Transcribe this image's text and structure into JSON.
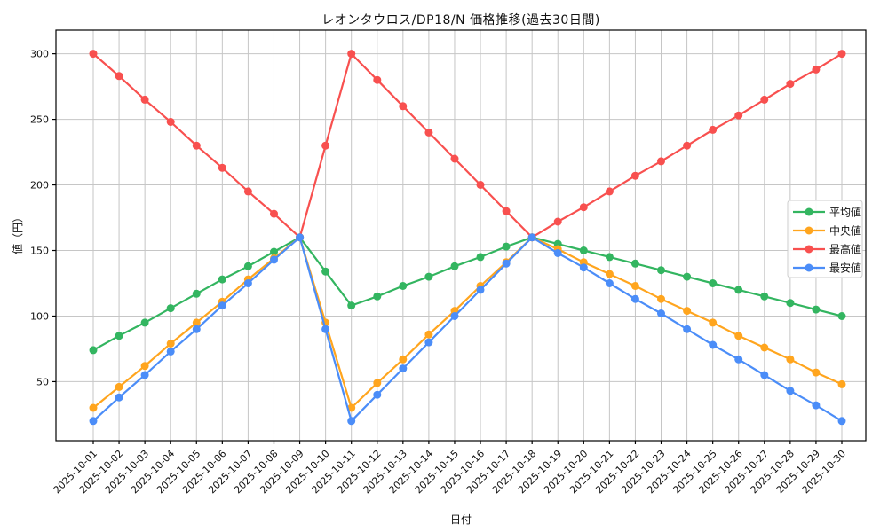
{
  "chart_data": {
    "type": "line",
    "title": "レオンタウロス/DP18/N 価格推移(過去30日間)",
    "xlabel": "日付",
    "ylabel": "値（円）",
    "x": [
      "2025-10-01",
      "2025-10-02",
      "2025-10-03",
      "2025-10-04",
      "2025-10-05",
      "2025-10-06",
      "2025-10-07",
      "2025-10-08",
      "2025-10-09",
      "2025-10-10",
      "2025-10-11",
      "2025-10-12",
      "2025-10-13",
      "2025-10-14",
      "2025-10-15",
      "2025-10-16",
      "2025-10-17",
      "2025-10-18",
      "2025-10-19",
      "2025-10-20",
      "2025-10-21",
      "2025-10-22",
      "2025-10-23",
      "2025-10-24",
      "2025-10-25",
      "2025-10-26",
      "2025-10-27",
      "2025-10-28",
      "2025-10-29",
      "2025-10-30"
    ],
    "series": [
      {
        "key": "average",
        "name": "平均値",
        "color": "#33b560",
        "values": [
          74,
          85,
          95,
          106,
          117,
          128,
          138,
          149,
          160,
          134,
          108,
          115,
          123,
          130,
          138,
          145,
          153,
          160,
          155,
          150,
          145,
          140,
          135,
          130,
          125,
          120,
          115,
          110,
          105,
          100
        ]
      },
      {
        "key": "median",
        "name": "中央値",
        "color": "#ffa51e",
        "values": [
          30,
          46,
          62,
          79,
          95,
          111,
          128,
          144,
          160,
          95,
          30,
          49,
          67,
          86,
          104,
          123,
          141,
          160,
          151,
          141,
          132,
          123,
          113,
          104,
          95,
          85,
          76,
          67,
          57,
          48
        ]
      },
      {
        "key": "highest",
        "name": "最高値",
        "color": "#f8504f",
        "values": [
          300,
          283,
          265,
          248,
          230,
          213,
          195,
          178,
          160,
          230,
          300,
          280,
          260,
          240,
          220,
          200,
          180,
          160,
          172,
          183,
          195,
          207,
          218,
          230,
          242,
          253,
          265,
          277,
          288,
          300
        ]
      },
      {
        "key": "lowest",
        "name": "最安値",
        "color": "#4b8df8",
        "values": [
          20,
          38,
          55,
          73,
          90,
          108,
          125,
          143,
          160,
          90,
          20,
          40,
          60,
          80,
          100,
          120,
          140,
          160,
          148,
          137,
          125,
          113,
          102,
          90,
          78,
          67,
          55,
          43,
          32,
          20
        ]
      }
    ],
    "yticks": [
      50,
      100,
      150,
      200,
      250,
      300
    ],
    "ylim": [
      5,
      318
    ],
    "grid": true,
    "legend_position": "right-inside",
    "marker": "circle",
    "axis_color": "#000000",
    "grid_color": "#c6c6c6",
    "legend_border_color": "#cccccc"
  }
}
